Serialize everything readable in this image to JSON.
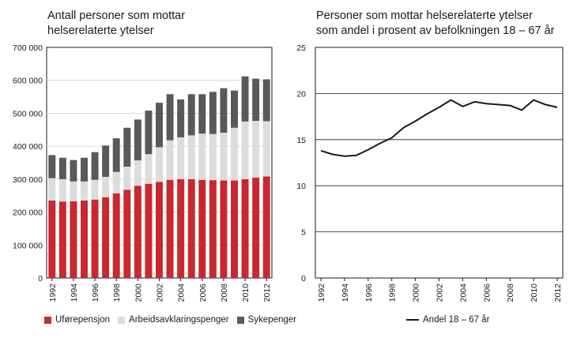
{
  "chart_data": [
    {
      "type": "bar",
      "stacked": true,
      "title": "Antall personer som mottar\nhelserelaterte ytelser",
      "categories": [
        "1992",
        "1993",
        "1994",
        "1995",
        "1996",
        "1997",
        "1998",
        "1999",
        "2000",
        "2001",
        "2002",
        "2003",
        "2004",
        "2005",
        "2006",
        "2007",
        "2008",
        "2009",
        "2010",
        "2011",
        "2012"
      ],
      "x_tick_labels": [
        "1992",
        "1994",
        "1996",
        "1998",
        "2000",
        "2002",
        "2004",
        "2006",
        "2008",
        "2010",
        "2012"
      ],
      "ylim": [
        0,
        700000
      ],
      "y_ticks": [
        0,
        100000,
        200000,
        300000,
        400000,
        500000,
        600000,
        700000
      ],
      "y_tick_labels": [
        "0",
        "100 000",
        "200 000",
        "300 000",
        "400 000",
        "500 000",
        "600 000",
        "700 000"
      ],
      "grid": true,
      "legend_position": "bottom",
      "series": [
        {
          "name": "Uførepensjon",
          "color": "#c8282e",
          "values": [
            235000,
            232000,
            233000,
            235000,
            238000,
            245000,
            257000,
            268000,
            280000,
            286000,
            292000,
            298000,
            300000,
            300000,
            298000,
            297000,
            296000,
            296000,
            300000,
            305000,
            308000
          ]
        },
        {
          "name": "Arbeidsavklaringspenger",
          "color": "#dcdcdc",
          "values": [
            68000,
            68000,
            60000,
            58000,
            60000,
            62000,
            65000,
            70000,
            77000,
            90000,
            105000,
            120000,
            127000,
            133000,
            140000,
            140000,
            145000,
            160000,
            175000,
            172000,
            168000
          ]
        },
        {
          "name": "Sykepenger",
          "color": "#595959",
          "values": [
            70000,
            65000,
            65000,
            72000,
            84000,
            95000,
            102000,
            118000,
            124000,
            132000,
            135000,
            140000,
            115000,
            125000,
            120000,
            128000,
            135000,
            113000,
            137000,
            128000,
            127000
          ]
        }
      ]
    },
    {
      "type": "line",
      "title": "Personer som mottar helserelaterte ytelser\nsom andel i prosent av befolkningen 18 – 67 år",
      "x": [
        1992,
        1993,
        1994,
        1995,
        1996,
        1997,
        1998,
        1999,
        2000,
        2001,
        2002,
        2003,
        2004,
        2005,
        2006,
        2007,
        2008,
        2009,
        2010,
        2011,
        2012
      ],
      "x_tick_labels": [
        "1992",
        "1994",
        "1996",
        "1998",
        "2000",
        "2002",
        "2004",
        "2006",
        "2008",
        "2010",
        "2012"
      ],
      "ylim": [
        0,
        25
      ],
      "y_ticks": [
        0,
        5,
        10,
        15,
        20,
        25
      ],
      "y_tick_labels": [
        "0",
        "5",
        "10",
        "15",
        "20",
        "25"
      ],
      "grid": true,
      "legend_position": "bottom",
      "series": [
        {
          "name": "Andel 18 – 67 år",
          "color": "#1a1a1a",
          "values": [
            13.8,
            13.4,
            13.2,
            13.3,
            13.9,
            14.6,
            15.2,
            16.3,
            17.0,
            17.8,
            18.5,
            19.3,
            18.6,
            19.1,
            18.9,
            18.8,
            18.7,
            18.2,
            19.3,
            18.8,
            18.5
          ]
        }
      ]
    }
  ]
}
